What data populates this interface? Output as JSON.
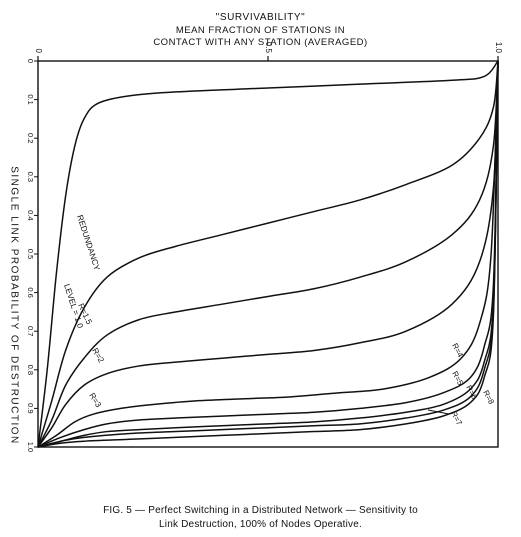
{
  "title": {
    "line1": "\"SURVIVABILITY\"",
    "line2": "MEAN FRACTION OF STATIONS IN",
    "line3": "CONTACT WITH ANY STATION (AVERAGED)"
  },
  "caption": {
    "line1": "FIG. 5 — Perfect Switching in a Distributed Network — Sensitivity to",
    "line2": "Link Destruction, 100% of Nodes Operative."
  },
  "chart_data": {
    "type": "line",
    "xlabel": "\"SURVIVABILITY\" MEAN FRACTION OF STATIONS IN CONTACT WITH ANY STATION (AVERAGED)",
    "ylabel": "SINGLE LINK PROBABILITY OF DESTRUCTION",
    "xlim": [
      0,
      1
    ],
    "ylim": [
      0,
      1
    ],
    "y_inverted": true,
    "x_axis_position": "top",
    "x_ticks": [
      {
        "value": 0,
        "label": "0"
      },
      {
        "value": 0.5,
        "label": "0.5"
      },
      {
        "value": 1,
        "label": "1.0"
      }
    ],
    "y_ticks": [
      {
        "value": 0,
        "label": "0"
      },
      {
        "value": 0.1,
        "label": "0.1"
      },
      {
        "value": 0.2,
        "label": "0.2"
      },
      {
        "value": 0.3,
        "label": "0.3"
      },
      {
        "value": 0.4,
        "label": "0.4"
      },
      {
        "value": 0.5,
        "label": "0.5"
      },
      {
        "value": 0.6,
        "label": "0.6"
      },
      {
        "value": 0.7,
        "label": "0.7"
      },
      {
        "value": 0.8,
        "label": "0.8"
      },
      {
        "value": 0.9,
        "label": "0.9"
      },
      {
        "value": 1.0,
        "label": "1.0"
      }
    ],
    "grid": false,
    "series": [
      {
        "name": "REDUNDANCY LEVEL = 1.0",
        "x": [
          0,
          0.02,
          0.04,
          0.06,
          0.08,
          0.1,
          0.13,
          0.2,
          0.3,
          0.5,
          0.7,
          0.9,
          0.97,
          1.0
        ],
        "y": [
          1.0,
          0.8,
          0.55,
          0.35,
          0.22,
          0.15,
          0.11,
          0.09,
          0.08,
          0.07,
          0.06,
          0.05,
          0.04,
          0.0
        ]
      },
      {
        "name": "R=1.5",
        "x": [
          0,
          0.03,
          0.06,
          0.1,
          0.15,
          0.22,
          0.3,
          0.4,
          0.5,
          0.6,
          0.7,
          0.8,
          0.9,
          0.96,
          0.99,
          1.0
        ],
        "y": [
          1.0,
          0.88,
          0.75,
          0.64,
          0.56,
          0.51,
          0.48,
          0.45,
          0.42,
          0.39,
          0.36,
          0.32,
          0.27,
          0.2,
          0.12,
          0.0
        ]
      },
      {
        "name": "R=2",
        "x": [
          0,
          0.03,
          0.06,
          0.1,
          0.15,
          0.22,
          0.3,
          0.4,
          0.5,
          0.6,
          0.7,
          0.8,
          0.9,
          0.96,
          0.99,
          1.0
        ],
        "y": [
          1.0,
          0.93,
          0.84,
          0.77,
          0.71,
          0.67,
          0.65,
          0.63,
          0.61,
          0.59,
          0.56,
          0.52,
          0.45,
          0.36,
          0.22,
          0.0
        ]
      },
      {
        "name": "R=3",
        "x": [
          0,
          0.03,
          0.06,
          0.1,
          0.15,
          0.22,
          0.3,
          0.4,
          0.5,
          0.6,
          0.7,
          0.8,
          0.9,
          0.96,
          0.99,
          1.0
        ],
        "y": [
          1.0,
          0.95,
          0.89,
          0.84,
          0.81,
          0.79,
          0.78,
          0.77,
          0.76,
          0.75,
          0.73,
          0.7,
          0.63,
          0.52,
          0.33,
          0.0
        ]
      },
      {
        "name": "R=4",
        "x": [
          0,
          0.04,
          0.08,
          0.12,
          0.18,
          0.25,
          0.35,
          0.45,
          0.55,
          0.65,
          0.75,
          0.85,
          0.92,
          0.96,
          0.985,
          1.0
        ],
        "y": [
          1.0,
          0.97,
          0.935,
          0.915,
          0.9,
          0.89,
          0.88,
          0.875,
          0.87,
          0.86,
          0.85,
          0.82,
          0.77,
          0.68,
          0.5,
          0.0
        ]
      },
      {
        "name": "R=5",
        "x": [
          0,
          0.05,
          0.1,
          0.15,
          0.22,
          0.3,
          0.4,
          0.5,
          0.6,
          0.7,
          0.8,
          0.88,
          0.94,
          0.97,
          0.99,
          1.0
        ],
        "y": [
          1.0,
          0.975,
          0.955,
          0.94,
          0.93,
          0.925,
          0.92,
          0.915,
          0.91,
          0.9,
          0.885,
          0.86,
          0.82,
          0.74,
          0.58,
          0.0
        ]
      },
      {
        "name": "R=6",
        "x": [
          0,
          0.05,
          0.1,
          0.15,
          0.22,
          0.3,
          0.4,
          0.5,
          0.6,
          0.7,
          0.8,
          0.88,
          0.94,
          0.97,
          0.99,
          1.0
        ],
        "y": [
          1.0,
          0.985,
          0.97,
          0.96,
          0.955,
          0.95,
          0.945,
          0.94,
          0.935,
          0.925,
          0.91,
          0.89,
          0.85,
          0.78,
          0.62,
          0.0
        ]
      },
      {
        "name": "R=7",
        "x": [
          0,
          0.05,
          0.1,
          0.2,
          0.3,
          0.4,
          0.5,
          0.6,
          0.7,
          0.8,
          0.88,
          0.94,
          0.97,
          0.99,
          1.0
        ],
        "y": [
          1.0,
          0.99,
          0.985,
          0.98,
          0.975,
          0.97,
          0.965,
          0.96,
          0.955,
          0.94,
          0.92,
          0.885,
          0.82,
          0.66,
          0.0
        ]
      },
      {
        "name": "R=8",
        "x": [
          0,
          0.05,
          0.1,
          0.2,
          0.3,
          0.4,
          0.5,
          0.6,
          0.7,
          0.8,
          0.88,
          0.94,
          0.97,
          0.99,
          1.0
        ],
        "y": [
          1.0,
          0.985,
          0.975,
          0.965,
          0.96,
          0.955,
          0.95,
          0.945,
          0.94,
          0.925,
          0.905,
          0.87,
          0.8,
          0.64,
          0.0
        ]
      }
    ],
    "annotations": [
      {
        "text": "REDUNDANCY",
        "series": "REDUNDANCY LEVEL = 1.0"
      },
      {
        "text": "LEVEL = 1.0",
        "series": "REDUNDANCY LEVEL = 1.0"
      },
      {
        "text": "R=1.5",
        "series": "R=1.5"
      },
      {
        "text": "R=2",
        "series": "R=2"
      },
      {
        "text": "R=3",
        "series": "R=3"
      },
      {
        "text": "R=4",
        "series": "R=4"
      },
      {
        "text": "R=5",
        "series": "R=5"
      },
      {
        "text": "R=6",
        "series": "R=6"
      },
      {
        "text": "R=7",
        "series": "R=7"
      },
      {
        "text": "R=8",
        "series": "R=8"
      }
    ]
  }
}
